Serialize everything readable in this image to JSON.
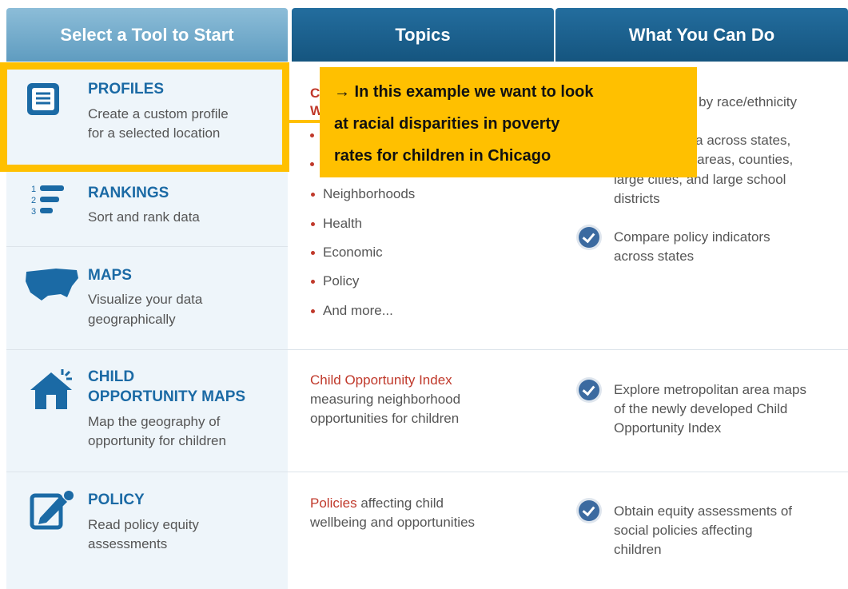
{
  "header": {
    "tabs": [
      "Select a Tool to Start",
      "Topics",
      "What You Can Do"
    ]
  },
  "tools": [
    {
      "name": "PROFILES",
      "desc": [
        "Create a custom profile",
        "for a selected location"
      ]
    },
    {
      "name": "RANKINGS",
      "desc": [
        "Sort and rank data"
      ]
    },
    {
      "name": "MAPS",
      "desc": [
        "Visualize your data",
        "geographically"
      ]
    },
    {
      "name": [
        "CHILD",
        "OPPORTUNITY MAPS"
      ],
      "desc": [
        "Map the geography of",
        "opportunity for children"
      ]
    },
    {
      "name": "POLICY",
      "desc": [
        "Read policy equity",
        "assessments"
      ]
    }
  ],
  "topics": {
    "fragments": [
      "C",
      "W"
    ],
    "bullets": [
      "Neighborhoods",
      "Health",
      "Economic",
      "Policy",
      "And more..."
    ],
    "child": {
      "link": "Child Opportunity Index",
      "text": [
        "measuring neighborhood",
        "opportunities for children"
      ]
    },
    "policy": {
      "link": "Policies",
      "text": [
        " affecting child",
        "wellbeing and opportunities"
      ]
    }
  },
  "actions": {
    "fragments": [
      "a by race/ethnicity",
      "ata across states,",
      "n areas, counties,",
      "large cities, and large school",
      "districts"
    ],
    "items": [
      [
        "Compare policy indicators",
        "across states"
      ],
      [
        "Explore metropolitan area maps",
        "of the newly developed Child",
        "Opportunity Index"
      ],
      [
        "Obtain equity assessments of",
        "social policies affecting",
        "children"
      ]
    ]
  },
  "callout": [
    "→ In this example we want to look",
    "at racial disparities in poverty",
    "rates for children in Chicago"
  ]
}
